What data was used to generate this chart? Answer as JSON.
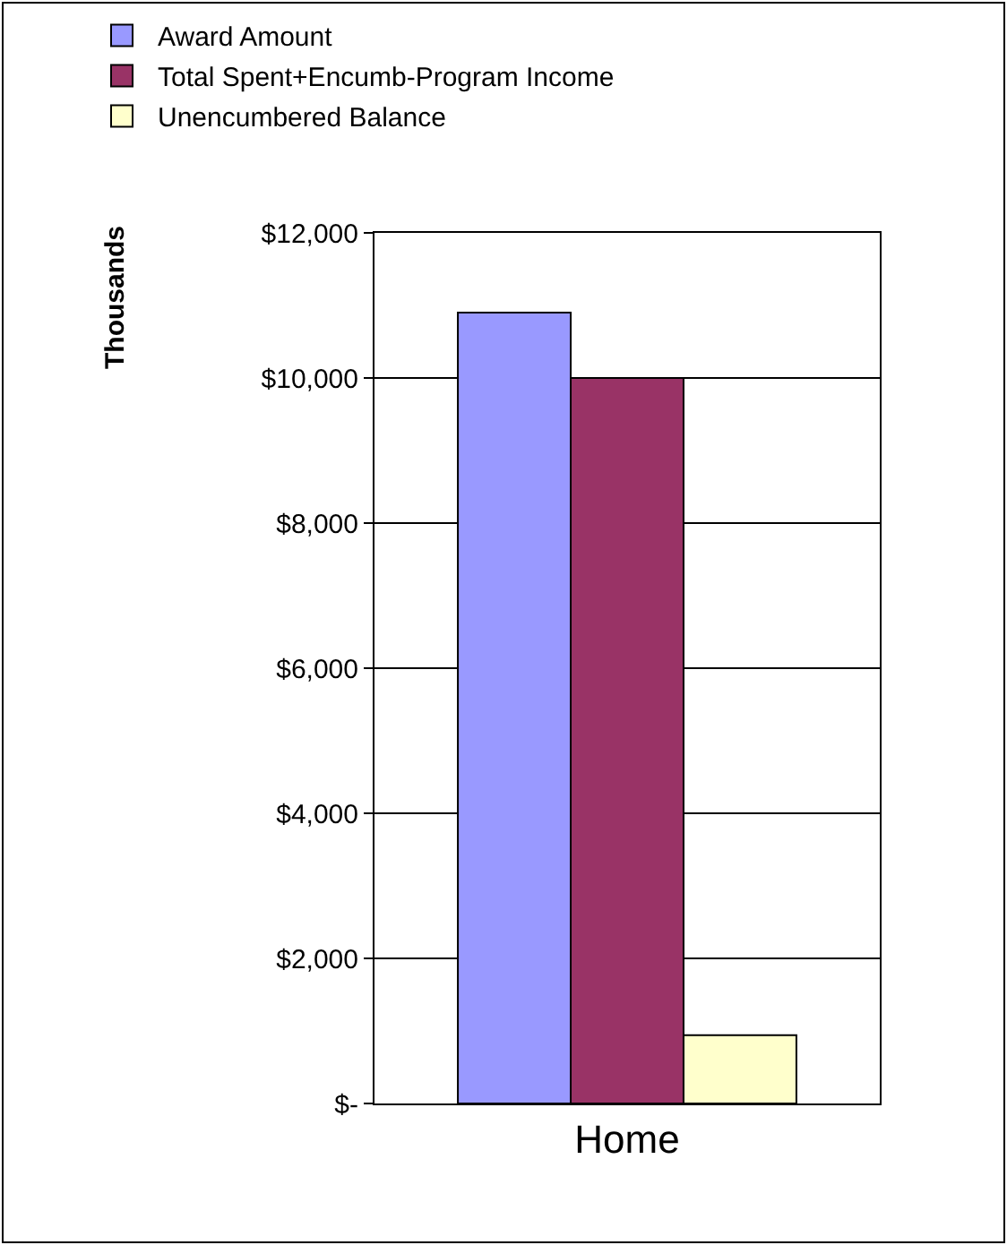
{
  "chart_data": {
    "type": "bar",
    "ylabel": "Thousands",
    "categories": [
      "Home"
    ],
    "series": [
      {
        "name": "Award Amount",
        "color": "#9999ff",
        "values": [
          10900
        ]
      },
      {
        "name": "Total Spent+Encumb-Program Income",
        "color": "#993366",
        "values": [
          10000
        ]
      },
      {
        "name": "Unencumbered Balance",
        "color": "#ffffcc",
        "values": [
          940
        ]
      }
    ],
    "ylim": [
      0,
      12000
    ],
    "yticks": [
      {
        "value": 0,
        "label": "$-"
      },
      {
        "value": 2000,
        "label": "$2,000"
      },
      {
        "value": 4000,
        "label": "$4,000"
      },
      {
        "value": 6000,
        "label": "$6,000"
      },
      {
        "value": 8000,
        "label": "$8,000"
      },
      {
        "value": 10000,
        "label": "$10,000"
      },
      {
        "value": 12000,
        "label": "$12,000"
      }
    ],
    "grid": "y",
    "legend": "top left"
  }
}
